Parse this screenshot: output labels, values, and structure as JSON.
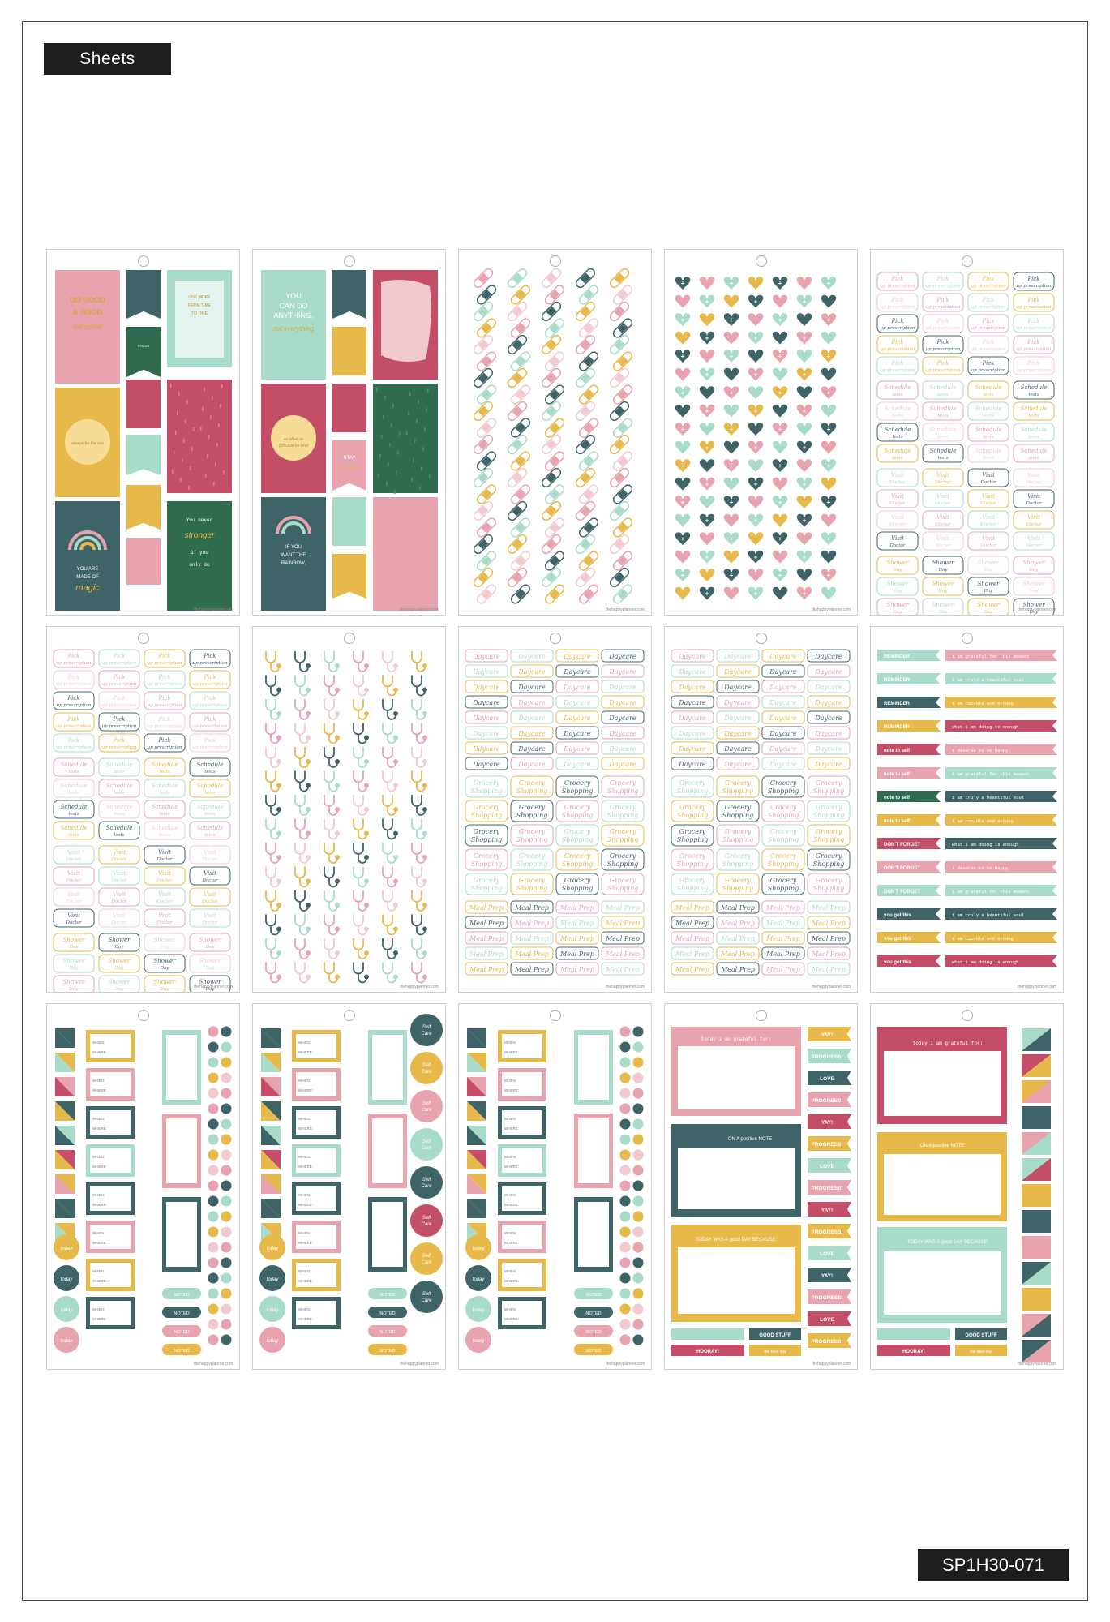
{
  "header": {
    "label": "Sheets"
  },
  "footer": {
    "sku": "SP1H30-071"
  },
  "palette": {
    "pink": "#e7a3ae",
    "rose": "#c44d67",
    "teal": "#3f6468",
    "mint": "#a9dbc9",
    "mustard": "#e7b94a",
    "green": "#2f6b4e",
    "blush": "#f1c9cf"
  },
  "sheets": [
    {
      "kind": "quotes",
      "variant": 1
    },
    {
      "kind": "quotes",
      "variant": 2
    },
    {
      "kind": "bandages"
    },
    {
      "kind": "hearts"
    },
    {
      "kind": "script",
      "variant": 1
    },
    {
      "kind": "script",
      "variant": 2
    },
    {
      "kind": "stethoscopes"
    },
    {
      "kind": "script-labels",
      "variant": 1
    },
    {
      "kind": "script-labels",
      "variant": 2
    },
    {
      "kind": "banners"
    },
    {
      "kind": "functional",
      "variant": 1
    },
    {
      "kind": "functional",
      "variant": 2
    },
    {
      "kind": "functional",
      "variant": 3
    },
    {
      "kind": "journal",
      "variant": 1
    },
    {
      "kind": "journal",
      "variant": 2
    }
  ],
  "stickers": {
    "quotes1": {
      "do_good": "DO GOOD & GOOD WILL COME TO YOU",
      "be_kind": "be kind",
      "one_more": "ONE MORE FROM TIME TO TIME ATTEMPT THINGS THAT ARE BEYOND YOUR CAPACITY",
      "focus": "FOCUS ON THE good",
      "keep_your_head_up": "keep your head up",
      "always_be_the_sun": "always be the sun",
      "take_a_deep_breath": "take a deep breath",
      "magic": "YOU ARE MADE OF magic",
      "stronger": "You never get stronger if you only do easy things."
    },
    "quotes2": {
      "you_can_do": "YOU CAN DO ANYTHING, not everything",
      "focus": "FOCUS ON THE good",
      "keep_your_head_up": "keep your head up",
      "as_often": "as often as possible be kind",
      "be_kind": "be kind",
      "be_present": "be present in all things",
      "stay_positive": "STAY positive",
      "rainbow": "IF YOU WANT THE RAINBOW, you gotta put up with the rain",
      "choose_joy": "choose joy",
      "be_well": "be well",
      "every_day": "every day is a new beginning"
    },
    "scripts": {
      "pick_up": "Pick up prescription",
      "schedule": "Schedule tests",
      "visit": "Visit Doctor",
      "shower": "Shower Day",
      "daycare": "Daycare",
      "grocery": "Grocery Shopping",
      "meal_prep": "Meal Prep"
    },
    "banners": {
      "reminder": "REMINDER",
      "note_to_self": "note to self",
      "dont_forget": "DON'T FORGET",
      "you_got_this": "you got this",
      "grateful": "i am grateful for this moment",
      "beautiful": "i am truly a beautiful soul",
      "capable": "i am capable and strong",
      "enough": "what i am doing is enough",
      "deserve": "i deserve to be happy"
    },
    "functional": {
      "noted": "NOTED",
      "when": "WHEN:",
      "where": "WHERE:",
      "self_care": "Self Care",
      "today": "today"
    },
    "journal": {
      "grateful": "today i am grateful for:",
      "positive_note": "ON A positive NOTE",
      "good_day": "TODAY WAS A good DAY BECAUSE:",
      "hooray": "HOORAY!",
      "good_stuff": "GOOD STUFF",
      "yay": "YAY!",
      "progress": "PROGRESS!",
      "love": "LOVE",
      "best_day": "the best day"
    },
    "brand": "thehappyplanner.com"
  }
}
